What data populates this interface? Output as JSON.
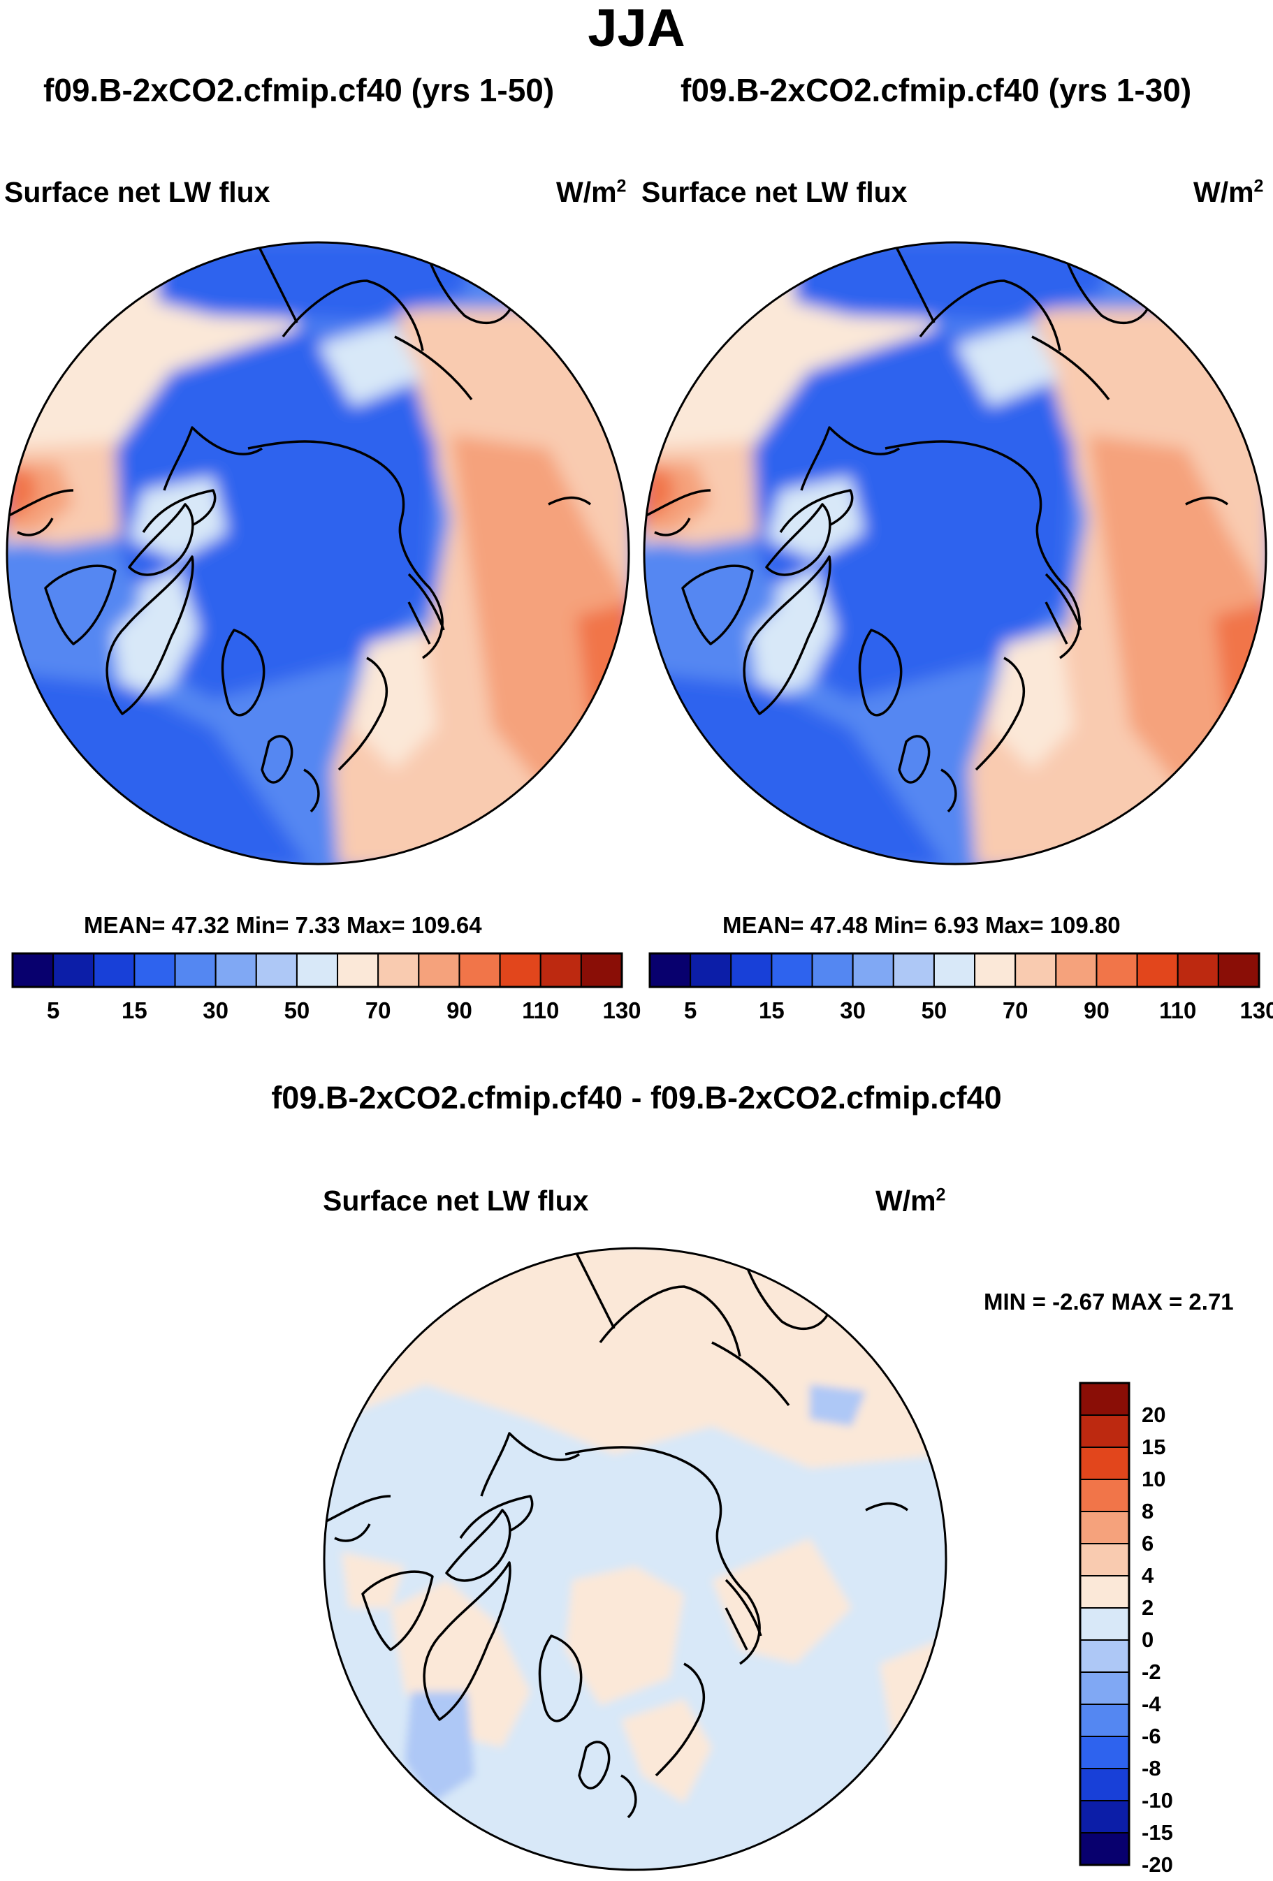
{
  "title": "JJA",
  "panels": [
    {
      "run_title": "f09.B-2xCO2.cfmip.cf40 (yrs 1-50)",
      "variable": "Surface net LW flux",
      "units": "W/m",
      "units_exp": "2",
      "stats": "MEAN=  47.32  Min=   7.33  Max= 109.64"
    },
    {
      "run_title": "f09.B-2xCO2.cfmip.cf40 (yrs 1-30)",
      "variable": "Surface net LW flux",
      "units": "W/m",
      "units_exp": "2",
      "stats": "MEAN=  47.48  Min=   6.93  Max= 109.80"
    }
  ],
  "colorbar_top": {
    "tick_labels": [
      "5",
      "15",
      "30",
      "50",
      "70",
      "90",
      "110",
      "130"
    ],
    "colors": [
      "#08006e",
      "#0c1ea8",
      "#1840d8",
      "#2e63ee",
      "#5487f2",
      "#80a8f4",
      "#aec8f6",
      "#d8e8f8",
      "#fbe8d8",
      "#f9cbb0",
      "#f5a27c",
      "#f17549",
      "#e2461c",
      "#bd2910",
      "#8a0e06"
    ]
  },
  "difference": {
    "title": "f09.B-2xCO2.cfmip.cf40 - f09.B-2xCO2.cfmip.cf40",
    "variable": "Surface net LW flux",
    "units": "W/m",
    "units_exp": "2",
    "stats": "MIN =  -2.67 MAX =   2.71",
    "colorbar": {
      "tick_labels": [
        "20",
        "15",
        "10",
        "8",
        "6",
        "4",
        "2",
        "0",
        "-2",
        "-4",
        "-6",
        "-8",
        "-10",
        "-15",
        "-20"
      ],
      "colors": [
        "#8a0e06",
        "#bd2910",
        "#e2461c",
        "#f17549",
        "#f5a27c",
        "#f9cbb0",
        "#fbe8d8",
        "#d8e8f8",
        "#aec8f6",
        "#80a8f4",
        "#5487f2",
        "#2e63ee",
        "#1840d8",
        "#0c1ea8",
        "#08006e"
      ]
    }
  },
  "map_colors": {
    "ocean_deep": "#2e63ee",
    "ocean_mid": "#5487f2",
    "ocean_light": "#80a8f4",
    "land_light": "#d8e8f8",
    "land_warm1": "#fbe8d8",
    "land_warm2": "#f9cbb0",
    "land_warm3": "#f5a27c",
    "land_warm4": "#f17549",
    "diff_pos": "#fbe8d8",
    "diff_neg": "#d8e8f8",
    "diff_neg2": "#aec8f6"
  }
}
